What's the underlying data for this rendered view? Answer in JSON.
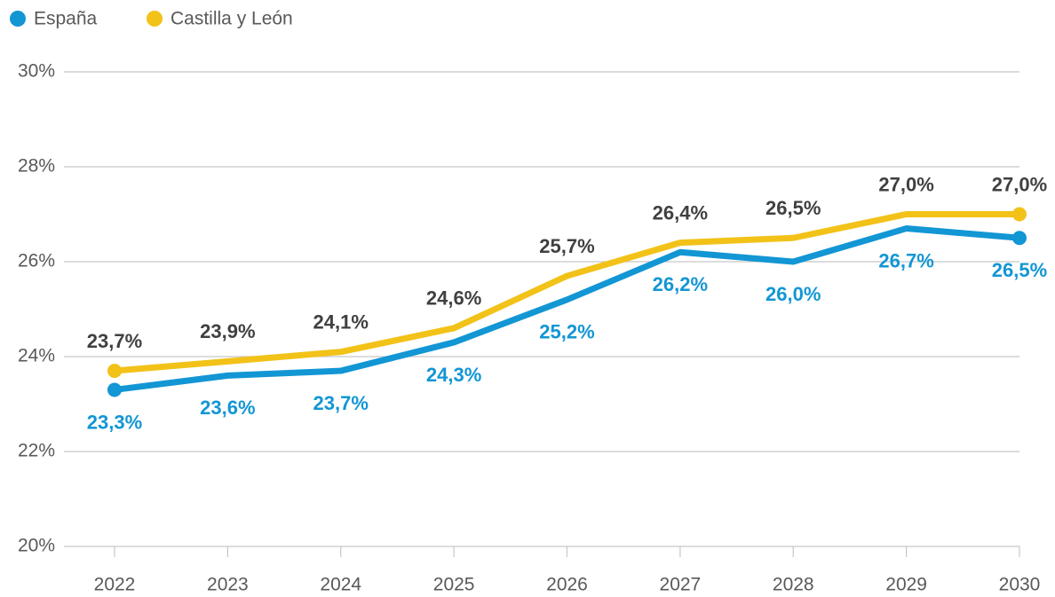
{
  "chart_data": {
    "type": "line",
    "categories": [
      "2022",
      "2023",
      "2024",
      "2025",
      "2026",
      "2027",
      "2028",
      "2029",
      "2030"
    ],
    "series": [
      {
        "name": "España",
        "color": "#1296d4",
        "values": [
          23.3,
          23.6,
          23.7,
          24.3,
          25.2,
          26.2,
          26.0,
          26.7,
          26.5
        ],
        "value_labels": [
          "23,3%",
          "23,6%",
          "23,7%",
          "24,3%",
          "25,2%",
          "26,2%",
          "26,0%",
          "26,7%",
          "26,5%"
        ]
      },
      {
        "name": "Castilla y León",
        "color": "#f2c218",
        "values": [
          23.7,
          23.9,
          24.1,
          24.6,
          25.7,
          26.4,
          26.5,
          27.0,
          27.0
        ],
        "value_labels": [
          "23,7%",
          "23,9%",
          "24,1%",
          "24,6%",
          "25,7%",
          "26,4%",
          "26,5%",
          "27,0%",
          "27,0%"
        ]
      }
    ],
    "ylim": [
      20,
      30
    ],
    "yticks": [
      {
        "value": 20,
        "label": "20%"
      },
      {
        "value": 22,
        "label": "22%"
      },
      {
        "value": 24,
        "label": "24%"
      },
      {
        "value": 26,
        "label": "26%"
      },
      {
        "value": 28,
        "label": "28%"
      },
      {
        "value": 30,
        "label": "30%"
      }
    ],
    "grid": true,
    "legend": "top-left"
  }
}
